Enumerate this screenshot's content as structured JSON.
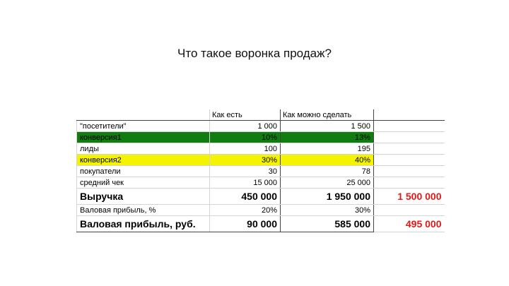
{
  "slide": {
    "title": "Что такое воронка продаж?"
  },
  "table": {
    "headers": {
      "label": "",
      "current": "Как есть",
      "target": "Как можно сделать",
      "delta": ""
    },
    "rows": [
      {
        "label": "\"посетители\"",
        "current": "1 000",
        "target": "1 500",
        "delta": "",
        "style": "plain"
      },
      {
        "label": "конверсия1",
        "current": "10%",
        "target": "13%",
        "delta": "",
        "style": "green"
      },
      {
        "label": "лиды",
        "current": "100",
        "target": "195",
        "delta": "",
        "style": "plain"
      },
      {
        "label": "конверсия2",
        "current": "30%",
        "target": "40%",
        "delta": "",
        "style": "yellow"
      },
      {
        "label": "покупатели",
        "current": "30",
        "target": "78",
        "delta": "",
        "style": "plain"
      },
      {
        "label": "средний чек",
        "current": "15 000",
        "target": "25 000",
        "delta": "",
        "style": "plain"
      },
      {
        "label": "Выручка",
        "current": "450 000",
        "target": "1 950 000",
        "delta": "1 500 000",
        "style": "big"
      },
      {
        "label": "Валовая прибыль, %",
        "current": "20%",
        "target": "30%",
        "delta": "",
        "style": "plain"
      },
      {
        "label": "Валовая прибыль, руб.",
        "current": "90 000",
        "target": "585 000",
        "delta": "495 000",
        "style": "big"
      }
    ],
    "colors": {
      "green_fill": "#117d11",
      "yellow_fill": "#f5f400",
      "delta_text": "#e01919"
    }
  }
}
